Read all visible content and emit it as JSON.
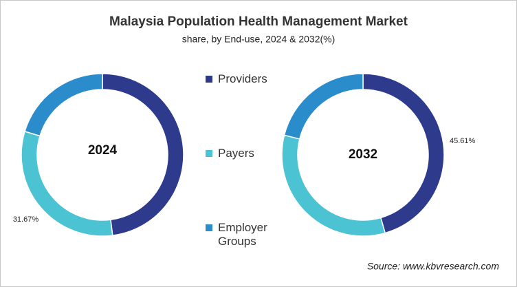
{
  "title": "Malaysia Population Health Management Market",
  "subtitle": "share, by End-use, 2024 & 2032(%)",
  "source": "Source: www.kbvresearch.com",
  "chart_data": [
    {
      "type": "pie",
      "center_label": "2024",
      "categories": [
        "Providers",
        "Payers",
        "Employer Groups"
      ],
      "values": [
        48.0,
        31.67,
        20.33
      ],
      "value_labels": [
        null,
        "31.67%",
        null
      ],
      "colors": [
        "#2e3a8c",
        "#4cc3d3",
        "#2b8ccc"
      ]
    },
    {
      "type": "pie",
      "center_label": "2032",
      "categories": [
        "Providers",
        "Payers",
        "Employer Groups"
      ],
      "values": [
        45.61,
        33.29,
        21.1
      ],
      "value_labels": [
        "45.61%",
        null,
        null
      ],
      "colors": [
        "#2e3a8c",
        "#4cc3d3",
        "#2b8ccc"
      ]
    }
  ]
}
